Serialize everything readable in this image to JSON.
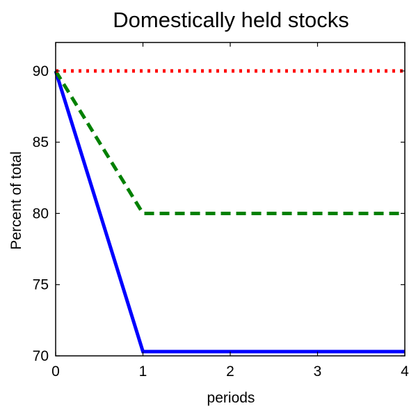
{
  "chart_data": {
    "type": "line",
    "title": "Domestically held stocks",
    "xlabel": "periods",
    "ylabel": "Percent of total",
    "x": [
      0,
      1,
      2,
      3,
      4
    ],
    "xlim": [
      0,
      4
    ],
    "ylim": [
      70,
      92
    ],
    "xticks": [
      "0",
      "1",
      "2",
      "3",
      "4"
    ],
    "yticks": [
      "70",
      "75",
      "80",
      "85",
      "90"
    ],
    "grid": false,
    "series": [
      {
        "values": [
          90,
          70.3,
          70.3,
          70.3,
          70.3
        ],
        "color": "#0000ff",
        "style": "solid"
      },
      {
        "values": [
          90,
          80,
          80,
          80,
          80
        ],
        "color": "#008000",
        "style": "dashed"
      },
      {
        "values": [
          90,
          90,
          90,
          90,
          90
        ],
        "color": "#ff0000",
        "style": "dotted"
      }
    ]
  }
}
